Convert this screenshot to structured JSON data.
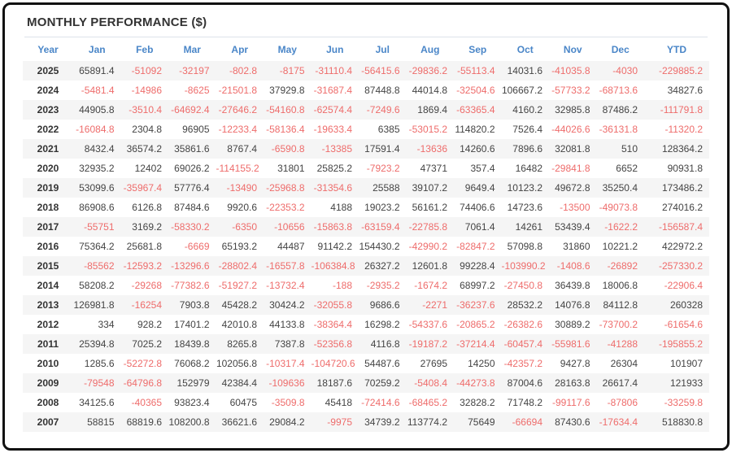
{
  "title": "MONTHLY PERFORMANCE ($)",
  "colors": {
    "header_text": "#4a86c8",
    "negative_value": "#ee6c6b",
    "positive_value": "#444444",
    "year_text": "#333333",
    "row_stripe": "#f5f5f5",
    "frame_border": "#111111"
  },
  "chart_data": {
    "type": "table",
    "title": "MONTHLY PERFORMANCE ($)",
    "columns": [
      "Year",
      "Jan",
      "Feb",
      "Mar",
      "Apr",
      "May",
      "Jun",
      "Jul",
      "Aug",
      "Sep",
      "Oct",
      "Nov",
      "Dec",
      "YTD"
    ],
    "rows": [
      {
        "year": "2025",
        "values": [
          "65891.4",
          "-51092",
          "-32197",
          "-802.8",
          "-8175",
          "-31110.4",
          "-56415.6",
          "-29836.2",
          "-55113.4",
          "14031.6",
          "-41035.8",
          "-4030",
          "-229885.2"
        ]
      },
      {
        "year": "2024",
        "values": [
          "-5481.4",
          "-14986",
          "-8625",
          "-21501.8",
          "37929.8",
          "-31687.4",
          "87448.8",
          "44014.8",
          "-32504.6",
          "106667.2",
          "-57733.2",
          "-68713.6",
          "34827.6"
        ]
      },
      {
        "year": "2023",
        "values": [
          "44905.8",
          "-3510.4",
          "-64692.4",
          "-27646.2",
          "-54160.8",
          "-62574.4",
          "-7249.6",
          "1869.4",
          "-63365.4",
          "4160.2",
          "32985.8",
          "87486.2",
          "-111791.8"
        ]
      },
      {
        "year": "2022",
        "values": [
          "-16084.8",
          "2304.8",
          "96905",
          "-12233.4",
          "-58136.4",
          "-19633.4",
          "6385",
          "-53015.2",
          "114820.2",
          "7526.4",
          "-44026.6",
          "-36131.8",
          "-11320.2"
        ]
      },
      {
        "year": "2021",
        "values": [
          "8432.4",
          "36574.2",
          "35861.6",
          "8767.4",
          "-6590.8",
          "-13385",
          "17591.4",
          "-13636",
          "14260.6",
          "7896.6",
          "32081.8",
          "510",
          "128364.2"
        ]
      },
      {
        "year": "2020",
        "values": [
          "32935.2",
          "12402",
          "69026.2",
          "-114155.2",
          "31801",
          "25825.2",
          "-7923.2",
          "47371",
          "357.4",
          "16482",
          "-29841.8",
          "6652",
          "90931.8"
        ]
      },
      {
        "year": "2019",
        "values": [
          "53099.6",
          "-35967.4",
          "57776.4",
          "-13490",
          "-25968.8",
          "-31354.6",
          "25588",
          "39107.2",
          "9649.4",
          "10123.2",
          "49672.8",
          "35250.4",
          "173486.2"
        ]
      },
      {
        "year": "2018",
        "values": [
          "86908.6",
          "6126.8",
          "87484.6",
          "9920.6",
          "-22353.2",
          "4188",
          "19023.2",
          "56161.2",
          "74406.6",
          "14723.6",
          "-13500",
          "-49073.8",
          "274016.2"
        ]
      },
      {
        "year": "2017",
        "values": [
          "-55751",
          "3169.2",
          "-58330.2",
          "-6350",
          "-10656",
          "-15863.8",
          "-63159.4",
          "-22785.8",
          "7061.4",
          "14261",
          "53439.4",
          "-1622.2",
          "-156587.4"
        ]
      },
      {
        "year": "2016",
        "values": [
          "75364.2",
          "25681.8",
          "-6669",
          "65193.2",
          "44487",
          "91142.2",
          "154430.2",
          "-42990.2",
          "-82847.2",
          "57098.8",
          "31860",
          "10221.2",
          "422972.2"
        ]
      },
      {
        "year": "2015",
        "values": [
          "-85562",
          "-12593.2",
          "-13296.6",
          "-28802.4",
          "-16557.8",
          "-106384.8",
          "26327.2",
          "12601.8",
          "99228.4",
          "-103990.2",
          "-1408.6",
          "-26892",
          "-257330.2"
        ]
      },
      {
        "year": "2014",
        "values": [
          "58208.2",
          "-29268",
          "-77382.6",
          "-51927.2",
          "-13732.4",
          "-188",
          "-2935.2",
          "-1674.2",
          "68997.2",
          "-27450.8",
          "36439.8",
          "18006.8",
          "-22906.4"
        ]
      },
      {
        "year": "2013",
        "values": [
          "126981.8",
          "-16254",
          "7903.8",
          "45428.2",
          "30424.2",
          "-32055.8",
          "9686.6",
          "-2271",
          "-36237.6",
          "28532.2",
          "14076.8",
          "84112.8",
          "260328"
        ]
      },
      {
        "year": "2012",
        "values": [
          "334",
          "928.2",
          "17401.2",
          "42010.8",
          "44133.8",
          "-38364.4",
          "16298.2",
          "-54337.6",
          "-20865.2",
          "-26382.6",
          "30889.2",
          "-73700.2",
          "-61654.6"
        ]
      },
      {
        "year": "2011",
        "values": [
          "25394.8",
          "7025.2",
          "18439.8",
          "8265.8",
          "7387.8",
          "-52356.8",
          "4116.8",
          "-19187.2",
          "-37214.4",
          "-60457.4",
          "-55981.6",
          "-41288",
          "-195855.2"
        ]
      },
      {
        "year": "2010",
        "values": [
          "1285.6",
          "-52272.8",
          "76068.2",
          "102056.8",
          "-10317.4",
          "-104720.6",
          "54487.6",
          "27695",
          "14250",
          "-42357.2",
          "9427.8",
          "26304",
          "101907"
        ]
      },
      {
        "year": "2009",
        "values": [
          "-79548",
          "-64796.8",
          "152979",
          "42384.4",
          "-109636",
          "18187.6",
          "70259.2",
          "-5408.4",
          "-44273.8",
          "87004.6",
          "28163.8",
          "26617.4",
          "121933"
        ]
      },
      {
        "year": "2008",
        "values": [
          "34125.6",
          "-40365",
          "93823.4",
          "60475",
          "-3509.8",
          "45418",
          "-72414.6",
          "-68465.2",
          "32828.2",
          "71748.2",
          "-99117.6",
          "-87806",
          "-33259.8"
        ]
      },
      {
        "year": "2007",
        "values": [
          "58815",
          "68819.6",
          "108200.8",
          "36621.6",
          "29084.2",
          "-9975",
          "34739.2",
          "113774.2",
          "75649",
          "-66694",
          "87430.6",
          "-17634.4",
          "518830.8"
        ]
      }
    ]
  }
}
